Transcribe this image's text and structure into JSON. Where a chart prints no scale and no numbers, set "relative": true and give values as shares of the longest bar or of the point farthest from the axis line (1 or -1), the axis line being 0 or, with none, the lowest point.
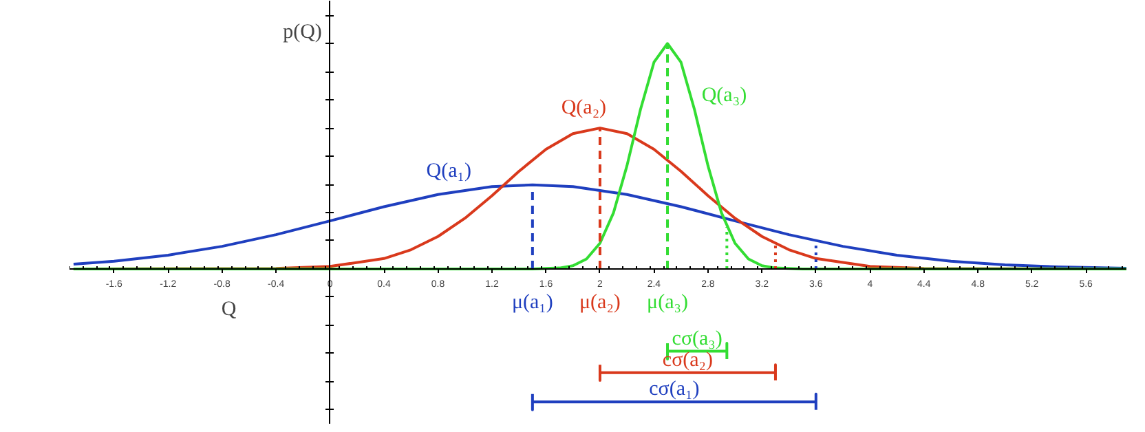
{
  "chart_data": {
    "type": "line",
    "relative": true,
    "xlabel": "Q",
    "ylabel": "p(Q)",
    "xlim": [
      -1.93,
      5.9
    ],
    "xticks": [
      -1.6,
      -1.2,
      -0.8,
      -0.4,
      0,
      0.4,
      0.8,
      1.2,
      1.6,
      2,
      2.4,
      2.8,
      3.2,
      3.6,
      4,
      4.4,
      4.8,
      5.2,
      5.6
    ],
    "tick_labels": "x",
    "marker": "none",
    "line_style": "solid",
    "series": [
      {
        "name": "Q(a₁)",
        "color": "#1f3fbf",
        "x": [
          -1.9,
          -1.6,
          -1.2,
          -0.8,
          -0.4,
          0,
          0.4,
          0.8,
          1.2,
          1.5,
          1.8,
          2.2,
          2.6,
          3.0,
          3.4,
          3.8,
          4.2,
          4.6,
          5.0,
          5.4,
          5.9
        ],
        "values": [
          0.021,
          0.034,
          0.061,
          0.1,
          0.152,
          0.213,
          0.276,
          0.33,
          0.365,
          0.373,
          0.365,
          0.33,
          0.276,
          0.213,
          0.152,
          0.1,
          0.061,
          0.034,
          0.018,
          0.009,
          0.003
        ]
      },
      {
        "name": "Q(a₂)",
        "color": "#d9391c",
        "x": [
          -1.9,
          -0.4,
          0,
          0.4,
          0.6,
          0.8,
          1.0,
          1.2,
          1.4,
          1.6,
          1.8,
          2.0,
          2.2,
          2.4,
          2.6,
          2.8,
          3.0,
          3.2,
          3.4,
          3.6,
          4.0,
          4.4,
          5.9
        ],
        "values": [
          0,
          0.002,
          0.011,
          0.046,
          0.085,
          0.144,
          0.225,
          0.325,
          0.433,
          0.531,
          0.6,
          0.625,
          0.6,
          0.531,
          0.433,
          0.325,
          0.225,
          0.144,
          0.085,
          0.046,
          0.011,
          0.002,
          0
        ]
      },
      {
        "name": "Q(a₃)",
        "color": "#33dd33",
        "x": [
          -1.9,
          1.5,
          1.7,
          1.8,
          1.9,
          2.0,
          2.1,
          2.2,
          2.3,
          2.4,
          2.5,
          2.6,
          2.7,
          2.8,
          2.9,
          3.0,
          3.1,
          3.2,
          3.3,
          3.5,
          5.9
        ],
        "values": [
          0,
          0,
          0.004,
          0.014,
          0.044,
          0.114,
          0.249,
          0.458,
          0.707,
          0.917,
          1,
          0.917,
          0.707,
          0.458,
          0.249,
          0.114,
          0.044,
          0.014,
          0.004,
          0,
          0
        ]
      },
      {
        "name": "μ(a₁)",
        "color": "#1f3fbf",
        "line_style": "dashed",
        "x": [
          1.5,
          1.5
        ],
        "values": [
          0,
          0.373
        ]
      },
      {
        "name": "μ(a₂)",
        "color": "#d9391c",
        "line_style": "dashed",
        "x": [
          2,
          2
        ],
        "values": [
          0,
          0.625
        ]
      },
      {
        "name": "μ(a₃)",
        "color": "#33dd33",
        "line_style": "dashed",
        "x": [
          2.5,
          2.5
        ],
        "values": [
          0,
          1
        ]
      },
      {
        "color": "#33dd33",
        "line_style": "dotted",
        "x": [
          2.94,
          2.94
        ],
        "values": [
          0,
          0.186
        ]
      },
      {
        "color": "#d9391c",
        "line_style": "dotted",
        "x": [
          3.3,
          3.3
        ],
        "values": [
          0,
          0.111
        ]
      },
      {
        "color": "#1f3fbf",
        "line_style": "dotted",
        "x": [
          3.6,
          3.6
        ],
        "values": [
          0,
          0.125
        ]
      },
      {
        "name": "cσ(a₃)",
        "color": "#33dd33",
        "x": [
          2.5,
          2.5,
          2.5,
          2.94,
          2.94,
          2.94
        ],
        "values": [
          -0.33,
          -0.4,
          -0.365,
          -0.365,
          -0.33,
          -0.4
        ]
      },
      {
        "name": "cσ(a₂)",
        "color": "#d9391c",
        "x": [
          2,
          2,
          2,
          3.3,
          3.3,
          3.3
        ],
        "values": [
          -0.425,
          -0.495,
          -0.46,
          -0.46,
          -0.425,
          -0.495
        ]
      },
      {
        "name": "cσ(a₁)",
        "color": "#1f3fbf",
        "x": [
          1.5,
          1.5,
          1.5,
          3.6,
          3.6,
          3.6
        ],
        "values": [
          -0.555,
          -0.625,
          -0.59,
          -0.59,
          -0.555,
          -0.625
        ]
      }
    ]
  }
}
